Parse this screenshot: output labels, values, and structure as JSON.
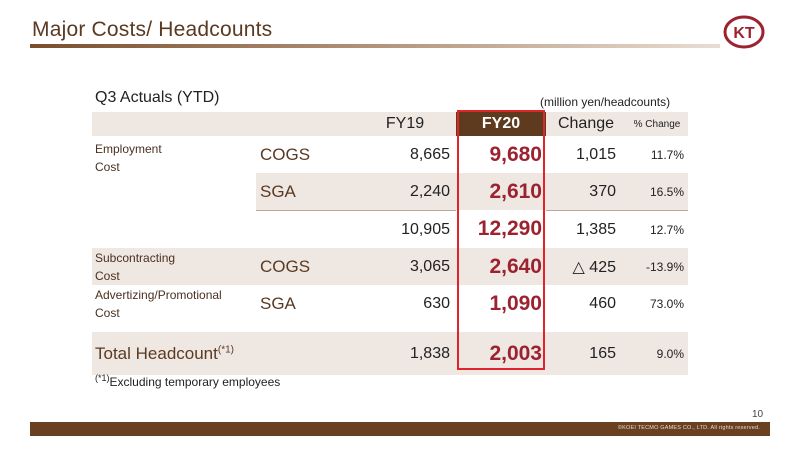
{
  "header": {
    "title": "Major Costs/ Headcounts"
  },
  "logo": {
    "icon": "koei-tecmo-logo-icon",
    "text": "KT"
  },
  "section": {
    "label": "Q3 Actuals (YTD)",
    "unit_note": "(million yen/headcounts)"
  },
  "table": {
    "columns": {
      "fy19": "FY19",
      "fy20": "FY20",
      "change": "Change",
      "pct_change": "% Change"
    },
    "rows": [
      {
        "group": "Employment Cost",
        "sub": "COGS",
        "fy19": "8,665",
        "fy20": "9,680",
        "change": "1,015",
        "pct": "11.7%"
      },
      {
        "group": "",
        "sub": "SGA",
        "fy19": "2,240",
        "fy20": "2,610",
        "change": "370",
        "pct": "16.5%"
      },
      {
        "group": "",
        "sub": "",
        "fy19": "10,905",
        "fy20": "12,290",
        "change": "1,385",
        "pct": "12.7%"
      },
      {
        "group": "Subcontracting Cost",
        "sub": "COGS",
        "fy19": "3,065",
        "fy20": "2,640",
        "change": "△ 425",
        "pct": "-13.9%"
      },
      {
        "group": "Advertizing/Promotional Cost",
        "sub": "SGA",
        "fy19": "630",
        "fy20": "1,090",
        "change": "460",
        "pct": "73.0%"
      }
    ],
    "total": {
      "label": "Total Headcount",
      "note_mark": "(*1)",
      "fy19": "1,838",
      "fy20": "2,003",
      "change": "165",
      "pct": "9.0%"
    }
  },
  "footnote": {
    "mark": "(*1)",
    "text": "Excluding temporary employees"
  },
  "footer": {
    "page_number": "10",
    "copyright": "©KOEI TECMO GAMES CO., LTD. All rights reserved."
  },
  "colors": {
    "brand_brown": "#6a4021",
    "fy20_header": "#5e3a1e",
    "fy20_value": "#9c2230",
    "highlight_border": "#e0242b",
    "row_shade": "#efe7e2"
  }
}
